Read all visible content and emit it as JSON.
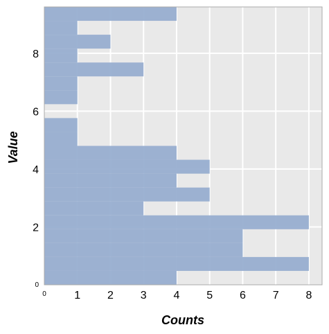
{
  "chart_data": {
    "type": "bar",
    "orientation": "horizontal",
    "xlabel": "Counts",
    "ylabel": "Value",
    "xlim": [
      0,
      8.4
    ],
    "ylim": [
      0,
      9.6
    ],
    "x_ticks": [
      "0",
      "1",
      "2",
      "3",
      "4",
      "5",
      "6",
      "7",
      "8"
    ],
    "y_ticks": [
      "0",
      "2",
      "4",
      "6",
      "8"
    ],
    "bin_width": 0.48,
    "bins": [
      {
        "start": 0.0,
        "count": 4
      },
      {
        "start": 0.48,
        "count": 8
      },
      {
        "start": 0.96,
        "count": 6
      },
      {
        "start": 1.44,
        "count": 6
      },
      {
        "start": 1.92,
        "count": 8
      },
      {
        "start": 2.4,
        "count": 3
      },
      {
        "start": 2.88,
        "count": 5
      },
      {
        "start": 3.36,
        "count": 4
      },
      {
        "start": 3.84,
        "count": 5
      },
      {
        "start": 4.32,
        "count": 4
      },
      {
        "start": 4.8,
        "count": 1
      },
      {
        "start": 5.28,
        "count": 1
      },
      {
        "start": 5.76,
        "count": 0
      },
      {
        "start": 6.24,
        "count": 1
      },
      {
        "start": 6.72,
        "count": 1
      },
      {
        "start": 7.2,
        "count": 3
      },
      {
        "start": 7.68,
        "count": 1
      },
      {
        "start": 8.16,
        "count": 2
      },
      {
        "start": 8.64,
        "count": 1
      },
      {
        "start": 9.12,
        "count": 4
      }
    ],
    "bar_color": "#98aed0",
    "background_color": "#e9e9e9",
    "grid_color": "#ffffff",
    "grid": true
  }
}
